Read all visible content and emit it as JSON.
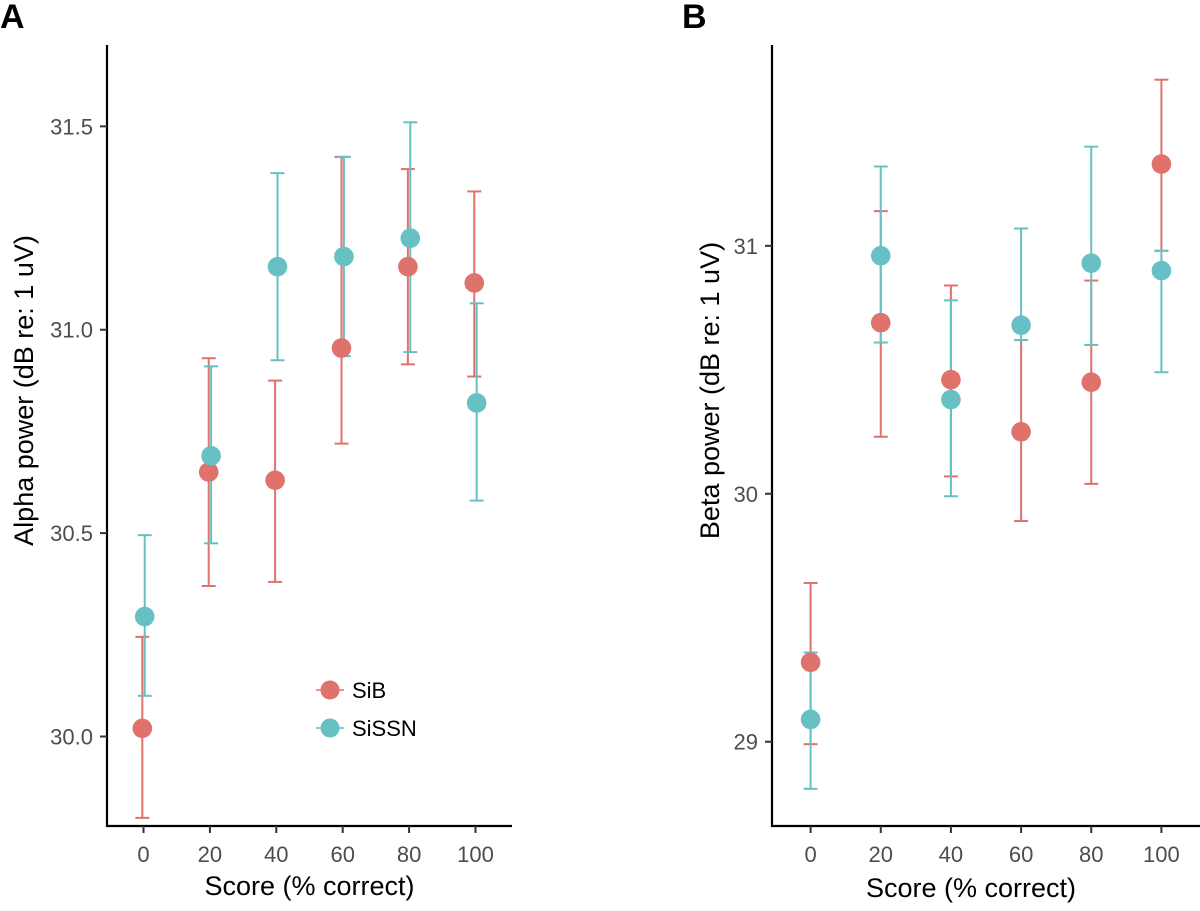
{
  "colors": {
    "SiB": "#E0726C",
    "SiSSN": "#67C0C4",
    "axis": "#000000",
    "tick_text": "#4d4d4d"
  },
  "chart_data": [
    {
      "panel": "A",
      "type": "scatter",
      "subtype": "point-errorbar",
      "xlabel": "Score (% correct)",
      "ylabel": "Alpha power (dB re: 1 uV)",
      "x_ticks": [
        0,
        20,
        40,
        60,
        80,
        100
      ],
      "x_tick_labels": [
        "0",
        "20",
        "40",
        "60",
        "80",
        "100"
      ],
      "y_ticks": [
        30.0,
        30.5,
        31.0,
        31.5
      ],
      "y_tick_labels": [
        "30.0",
        "30.5",
        "31.0",
        "31.5"
      ],
      "xlim": [
        -11,
        111
      ],
      "ylim": [
        29.78,
        31.7
      ],
      "legend": {
        "position": "bottom-right-inside",
        "entries": [
          "SiB",
          "SiSSN"
        ]
      },
      "series": [
        {
          "name": "SiB",
          "x": [
            0,
            20,
            40,
            60,
            80,
            100
          ],
          "y": [
            30.02,
            30.65,
            30.63,
            30.955,
            31.155,
            31.115
          ],
          "ymin": [
            29.8,
            30.37,
            30.38,
            30.72,
            30.915,
            30.885
          ],
          "ymax": [
            30.245,
            30.93,
            30.875,
            31.425,
            31.395,
            31.34
          ]
        },
        {
          "name": "SiSSN",
          "x": [
            0,
            20,
            40,
            60,
            80,
            100
          ],
          "y": [
            30.295,
            30.69,
            31.155,
            31.18,
            31.225,
            30.82
          ],
          "ymin": [
            30.1,
            30.475,
            30.925,
            30.935,
            30.945,
            30.58
          ],
          "ymax": [
            30.495,
            30.91,
            31.385,
            31.425,
            31.51,
            31.065
          ]
        }
      ]
    },
    {
      "panel": "B",
      "type": "scatter",
      "subtype": "point-errorbar",
      "xlabel": "Score (% correct)",
      "ylabel": "Beta power (dB re: 1 uV)",
      "x_ticks": [
        0,
        20,
        40,
        60,
        80,
        100
      ],
      "x_tick_labels": [
        "0",
        "20",
        "40",
        "60",
        "80",
        "100"
      ],
      "y_ticks": [
        29,
        30,
        31
      ],
      "y_tick_labels": [
        "29",
        "30",
        "31"
      ],
      "xlim": [
        -11,
        111
      ],
      "ylim": [
        28.66,
        31.81
      ],
      "legend": null,
      "series": [
        {
          "name": "SiB",
          "x": [
            0,
            20,
            40,
            60,
            80,
            100
          ],
          "y": [
            29.32,
            30.69,
            30.46,
            30.25,
            30.45,
            31.33
          ],
          "ymin": [
            28.99,
            30.23,
            30.07,
            29.89,
            30.04,
            30.98
          ],
          "ymax": [
            29.64,
            31.14,
            30.84,
            30.62,
            30.86,
            31.67
          ]
        },
        {
          "name": "SiSSN",
          "x": [
            0,
            20,
            40,
            60,
            80,
            100
          ],
          "y": [
            29.09,
            30.96,
            30.38,
            30.68,
            30.93,
            30.9
          ],
          "ymin": [
            28.81,
            30.61,
            29.99,
            30.62,
            30.6,
            30.49
          ],
          "ymax": [
            29.36,
            31.32,
            30.78,
            31.07,
            31.4,
            30.98
          ]
        }
      ]
    }
  ]
}
